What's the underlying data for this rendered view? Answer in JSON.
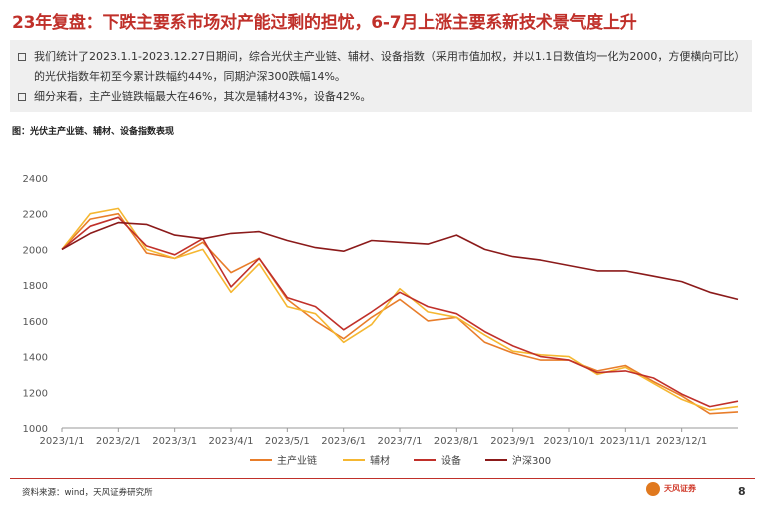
{
  "header": {
    "title": "23年复盘：下跌主要系市场对产能过剩的担忧，6-7月上涨主要系新技术景气度上升"
  },
  "summary": {
    "bullets": [
      "我们统计了2023.1.1-2023.12.27日期间，综合光伏主产业链、辅材、设备指数（采用市值加权，并以1.1日数值均一化为2000，方便横向可比）的光伏指数年初至今累计跌幅约44%，同期沪深300跌幅14%。",
      "细分来看，主产业链跌幅最大在46%，其次是辅材43%，设备42%。"
    ]
  },
  "figure": {
    "caption": "图：光伏主产业链、辅材、设备指数表现"
  },
  "footer": {
    "source": "资料来源：wind，天风证券研究所",
    "logo_text": "天风证券",
    "page_number": "8"
  },
  "chart_data": {
    "type": "line",
    "x": [
      "2023/1/1",
      "2023/1/15",
      "2023/2/1",
      "2023/2/15",
      "2023/3/1",
      "2023/3/15",
      "2023/4/1",
      "2023/4/15",
      "2023/5/1",
      "2023/5/15",
      "2023/6/1",
      "2023/6/15",
      "2023/7/1",
      "2023/7/15",
      "2023/8/1",
      "2023/8/15",
      "2023/9/1",
      "2023/9/15",
      "2023/10/1",
      "2023/10/15",
      "2023/11/1",
      "2023/11/15",
      "2023/12/1",
      "2023/12/15",
      "2023/12/27"
    ],
    "x_tick_labels": [
      "2023/1/1",
      "2023/2/1",
      "2023/3/1",
      "2023/4/1",
      "2023/5/1",
      "2023/6/1",
      "2023/7/1",
      "2023/8/1",
      "2023/9/1",
      "2023/10/1",
      "2023/11/1",
      "2023/12/1"
    ],
    "ylim": [
      1000,
      2400
    ],
    "y_ticks": [
      1000,
      1200,
      1400,
      1600,
      1800,
      2000,
      2200,
      2400
    ],
    "grid": false,
    "legend_position": "bottom",
    "colors": {
      "main": "#e87d2a",
      "aux": "#f5b731",
      "equip": "#c0302a",
      "hs300": "#8b1a1a"
    },
    "series": [
      {
        "name": "主产业链",
        "color_key": "main",
        "values": [
          2000,
          2170,
          2200,
          1980,
          1950,
          2040,
          1870,
          1950,
          1720,
          1600,
          1500,
          1620,
          1720,
          1600,
          1620,
          1480,
          1420,
          1380,
          1380,
          1320,
          1350,
          1260,
          1180,
          1080,
          1090
        ]
      },
      {
        "name": "辅材",
        "color_key": "aux",
        "values": [
          2000,
          2200,
          2230,
          2000,
          1950,
          2000,
          1760,
          1920,
          1680,
          1640,
          1480,
          1580,
          1780,
          1650,
          1620,
          1520,
          1430,
          1410,
          1400,
          1300,
          1340,
          1250,
          1160,
          1100,
          1120
        ]
      },
      {
        "name": "设备",
        "color_key": "equip",
        "values": [
          2000,
          2130,
          2180,
          2020,
          1970,
          2060,
          1790,
          1950,
          1730,
          1680,
          1550,
          1650,
          1760,
          1680,
          1640,
          1540,
          1460,
          1400,
          1380,
          1310,
          1320,
          1280,
          1190,
          1120,
          1150
        ]
      },
      {
        "name": "沪深300",
        "color_key": "hs300",
        "values": [
          2000,
          2090,
          2150,
          2140,
          2080,
          2060,
          2090,
          2100,
          2050,
          2010,
          1990,
          2050,
          2040,
          2030,
          2080,
          2000,
          1960,
          1940,
          1910,
          1880,
          1880,
          1850,
          1820,
          1760,
          1720
        ]
      }
    ]
  }
}
